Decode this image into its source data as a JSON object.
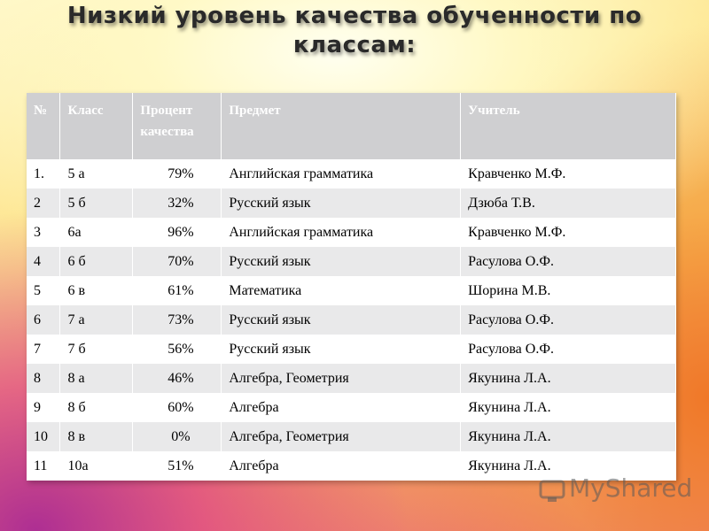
{
  "title_lines": [
    "Низкий уровень качества обученности по",
    "классам:"
  ],
  "table": {
    "header": [
      "№",
      "Класс",
      "Процент качества",
      "Предмет",
      "Учитель"
    ],
    "rows": [
      [
        "1.",
        "5 а",
        "79%",
        "Английская грамматика",
        "Кравченко М.Ф."
      ],
      [
        "2",
        "5 б",
        "32%",
        "Русский язык",
        "Дзюба Т.В."
      ],
      [
        "3",
        "6а",
        "96%",
        "Английская грамматика",
        "Кравченко М.Ф."
      ],
      [
        "4",
        "6 б",
        "70%",
        "Русский язык",
        "Расулова О.Ф."
      ],
      [
        "5",
        "6 в",
        "61%",
        "Математика",
        "Шорина М.В."
      ],
      [
        "6",
        "7 а",
        "73%",
        "Русский язык",
        "Расулова О.Ф."
      ],
      [
        "7",
        "7 б",
        "56%",
        "Русский язык",
        "Расулова О.Ф."
      ],
      [
        "8",
        "8 а",
        "46%",
        "Алгебра, Геометрия",
        "Якунина Л.А."
      ],
      [
        "9",
        "8 б",
        "60%",
        "Алгебра",
        "Якунина Л.А."
      ],
      [
        "10",
        "8 в",
        "0%",
        "Алгебра, Геометрия",
        "Якунина Л.А."
      ],
      [
        "11",
        "10а",
        "51%",
        "Алгебра",
        "Якунина Л.А."
      ]
    ]
  },
  "watermark": "MyShared"
}
